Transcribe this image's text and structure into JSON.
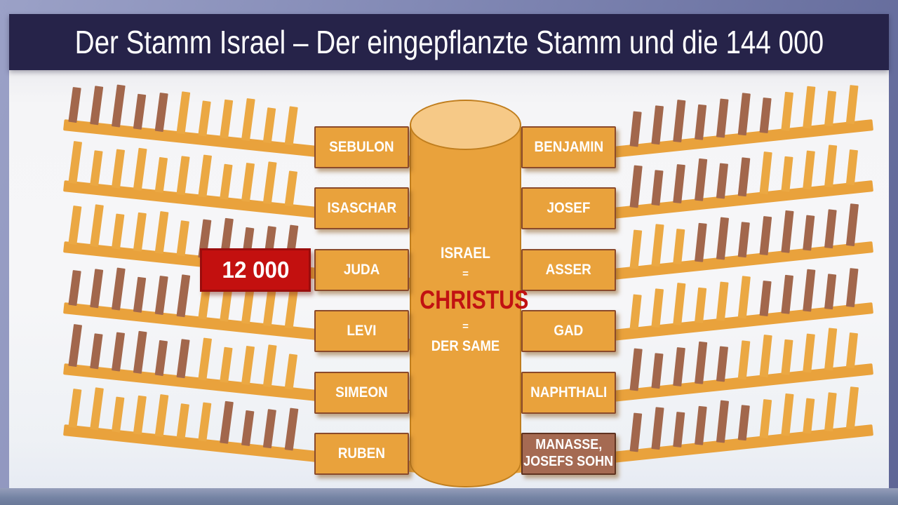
{
  "title": "Der Stamm Israel – Der eingepflanzte Stamm und die 144 000",
  "trunk": {
    "israel": "ISRAEL",
    "eq1": "=",
    "christus": "CHRISTUS",
    "eq2": "=",
    "der_same": "DER SAME"
  },
  "badge": {
    "count": "12 000"
  },
  "left_tribes": [
    {
      "name": "SEBULON"
    },
    {
      "name": "ISASCHAR"
    },
    {
      "name": "JUDA"
    },
    {
      "name": "LEVI"
    },
    {
      "name": "SIMEON"
    },
    {
      "name": "RUBEN"
    }
  ],
  "right_tribes": [
    {
      "name": "BENJAMIN"
    },
    {
      "name": "JOSEF"
    },
    {
      "name": "ASSER"
    },
    {
      "name": "GAD"
    },
    {
      "name": "NAPHTHALI"
    },
    {
      "name": "MANASSE, JOSEFS SOHN",
      "lines": [
        "MANASSE,",
        "JOSEFS SOHN"
      ],
      "variant": "brown"
    }
  ],
  "branches": {
    "left": [
      {
        "twigs": "bbbbboooooo"
      },
      {
        "twigs": "ooooooooooo"
      },
      {
        "twigs": "oooooobbbbb"
      },
      {
        "twigs": "bbbbbbooooo"
      },
      {
        "twigs": "bbbbbbooooo"
      },
      {
        "twigs": "ooooooobbbb"
      }
    ],
    "right": [
      {
        "twigs": "bbbbbbboooo"
      },
      {
        "twigs": "bbbbbbooooo"
      },
      {
        "twigs": "ooobbbbbbbb"
      },
      {
        "twigs": "oooooobbbbb"
      },
      {
        "twigs": "bbbbboooooo"
      },
      {
        "twigs": "bbbbbbooooo"
      }
    ]
  },
  "colors": {
    "header_bg": "#262349",
    "title_text": "#FFFFFF",
    "branch_orange": "#E9A23C",
    "twig_orange": "#EBA843",
    "twig_brown": "#A2674C",
    "box_border": "#8A4A2B",
    "trunk_fill": "#E9A23C",
    "trunk_top_fill": "#F6C987",
    "trunk_border": "#C07E1E",
    "christus_red": "#C11212",
    "badge_red": "#C3100F",
    "manasse_brown": "#A56A52",
    "frame_lavender": "#8289B5",
    "content_bg": "#F5F5F7"
  }
}
